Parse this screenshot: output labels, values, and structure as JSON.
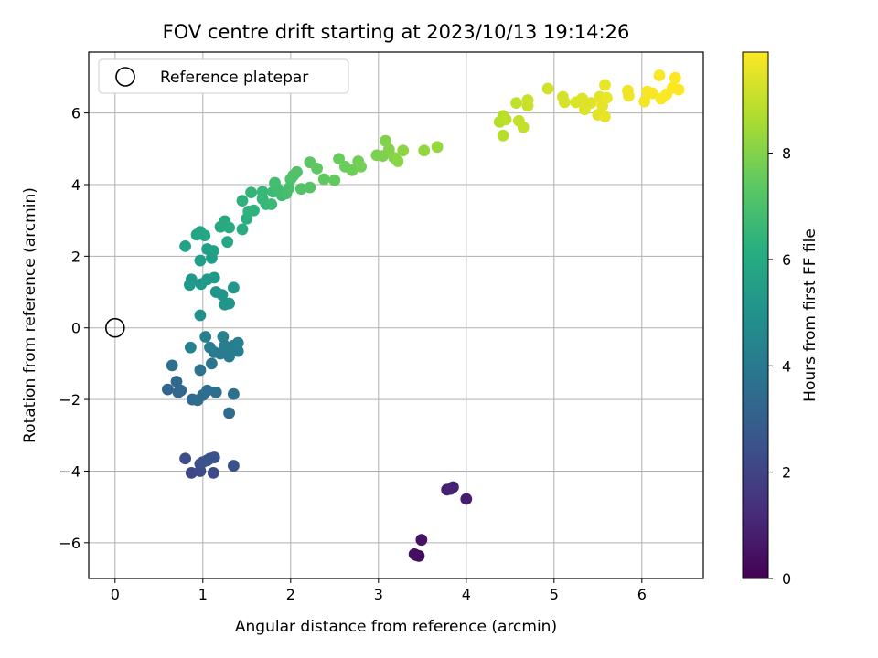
{
  "chart_data": {
    "type": "scatter",
    "title": "FOV centre drift starting at 2023/10/13 19:14:26",
    "xlabel": "Angular distance from reference (arcmin)",
    "ylabel": "Rotation from reference (arcmin)",
    "xlim": [
      -0.3,
      6.7
    ],
    "ylim": [
      -7.0,
      7.7
    ],
    "xticks": [
      0,
      1,
      2,
      3,
      4,
      5,
      6
    ],
    "yticks": [
      -6,
      -4,
      -2,
      0,
      2,
      4,
      6
    ],
    "grid": true,
    "legend": {
      "placement": "top-left",
      "entries": [
        "Reference platepar"
      ]
    },
    "reference_point": {
      "x": 0,
      "y": 0
    },
    "colorbar": {
      "label": "Hours from first FF file",
      "colormap": "viridis",
      "range": [
        0,
        9.9
      ],
      "ticks": [
        0,
        2,
        4,
        6,
        8
      ]
    },
    "series": [
      {
        "points": [
          [
            3.43,
            -6.35,
            0.3
          ],
          [
            3.46,
            -6.37,
            0.35
          ],
          [
            3.41,
            -6.32,
            0.4
          ],
          [
            3.49,
            -5.92,
            0.5
          ],
          [
            3.78,
            -4.52,
            0.9
          ],
          [
            3.85,
            -4.45,
            1.0
          ],
          [
            4.0,
            -4.78,
            0.8
          ],
          [
            3.82,
            -4.5,
            0.95
          ],
          [
            0.87,
            -4.05,
            2.1
          ],
          [
            0.97,
            -4.0,
            2.2
          ],
          [
            1.12,
            -4.05,
            2.25
          ],
          [
            0.8,
            -3.65,
            2.3
          ],
          [
            0.97,
            -3.8,
            2.35
          ],
          [
            1.05,
            -3.7,
            2.4
          ],
          [
            1.08,
            -3.65,
            2.45
          ],
          [
            1.13,
            -3.62,
            2.5
          ],
          [
            1.35,
            -3.85,
            2.5
          ],
          [
            1.0,
            -3.75,
            2.55
          ],
          [
            0.6,
            -1.72,
            3.2
          ],
          [
            0.72,
            -1.8,
            3.25
          ],
          [
            0.7,
            -1.5,
            3.3
          ],
          [
            0.75,
            -1.75,
            3.35
          ],
          [
            0.88,
            -2.0,
            3.4
          ],
          [
            0.94,
            -2.02,
            3.45
          ],
          [
            1.0,
            -1.88,
            3.5
          ],
          [
            1.05,
            -1.75,
            3.55
          ],
          [
            1.15,
            -1.8,
            3.6
          ],
          [
            1.35,
            -1.85,
            3.6
          ],
          [
            1.3,
            -2.38,
            3.4
          ],
          [
            0.65,
            -1.05,
            3.7
          ],
          [
            0.97,
            -1.18,
            3.8
          ],
          [
            1.1,
            -1.0,
            3.9
          ],
          [
            1.13,
            -0.68,
            4.0
          ],
          [
            1.2,
            -0.72,
            4.05
          ],
          [
            1.25,
            -0.6,
            4.1
          ],
          [
            1.3,
            -0.8,
            4.1
          ],
          [
            1.35,
            -0.5,
            4.15
          ],
          [
            1.4,
            -0.65,
            4.2
          ],
          [
            1.08,
            -0.55,
            4.2
          ],
          [
            1.03,
            -0.25,
            4.3
          ],
          [
            1.23,
            -0.25,
            4.35
          ],
          [
            1.4,
            -0.42,
            4.3
          ],
          [
            1.25,
            -0.5,
            4.25
          ],
          [
            0.86,
            -0.55,
            4.4
          ],
          [
            0.97,
            0.35,
            5.0
          ],
          [
            1.15,
            1.0,
            5.1
          ],
          [
            1.22,
            0.92,
            5.15
          ],
          [
            1.25,
            0.65,
            5.2
          ],
          [
            1.3,
            0.68,
            5.2
          ],
          [
            1.35,
            1.12,
            5.25
          ],
          [
            1.13,
            1.4,
            5.3
          ],
          [
            0.87,
            1.35,
            5.3
          ],
          [
            0.85,
            1.2,
            5.35
          ],
          [
            0.98,
            1.22,
            5.35
          ],
          [
            1.05,
            1.35,
            5.4
          ],
          [
            0.97,
            1.88,
            5.5
          ],
          [
            1.1,
            1.95,
            5.55
          ],
          [
            1.05,
            2.2,
            5.6
          ],
          [
            1.12,
            2.15,
            5.65
          ],
          [
            0.8,
            2.28,
            5.7
          ],
          [
            0.93,
            2.6,
            5.75
          ],
          [
            0.97,
            2.68,
            5.8
          ],
          [
            1.02,
            2.58,
            5.85
          ],
          [
            1.28,
            2.4,
            5.9
          ],
          [
            1.2,
            2.82,
            5.95
          ],
          [
            1.25,
            2.98,
            6.0
          ],
          [
            1.3,
            2.8,
            6.05
          ],
          [
            1.45,
            2.75,
            6.1
          ],
          [
            1.5,
            3.05,
            6.2
          ],
          [
            1.45,
            3.55,
            6.3
          ],
          [
            1.52,
            3.25,
            6.35
          ],
          [
            1.58,
            3.28,
            6.4
          ],
          [
            1.55,
            3.78,
            6.5
          ],
          [
            1.68,
            3.6,
            6.6
          ],
          [
            1.72,
            3.45,
            6.6
          ],
          [
            1.68,
            3.8,
            6.65
          ],
          [
            1.78,
            3.45,
            6.7
          ],
          [
            1.8,
            3.8,
            6.75
          ],
          [
            1.9,
            3.7,
            6.8
          ],
          [
            1.85,
            3.88,
            6.85
          ],
          [
            1.82,
            4.05,
            6.9
          ],
          [
            1.95,
            3.75,
            6.95
          ],
          [
            1.98,
            3.9,
            7.0
          ],
          [
            2.03,
            4.25,
            7.05
          ],
          [
            2.0,
            4.15,
            7.1
          ],
          [
            2.07,
            4.35,
            7.15
          ],
          [
            2.12,
            3.88,
            7.2
          ],
          [
            2.22,
            3.92,
            7.25
          ],
          [
            2.22,
            4.62,
            7.35
          ],
          [
            2.3,
            4.45,
            7.4
          ],
          [
            2.38,
            4.15,
            7.45
          ],
          [
            2.5,
            4.12,
            7.5
          ],
          [
            2.55,
            4.72,
            7.6
          ],
          [
            2.62,
            4.5,
            7.65
          ],
          [
            2.7,
            4.4,
            7.7
          ],
          [
            2.77,
            4.65,
            7.75
          ],
          [
            2.8,
            4.5,
            7.8
          ],
          [
            2.98,
            4.82,
            7.9
          ],
          [
            3.05,
            4.8,
            7.95
          ],
          [
            3.08,
            5.22,
            8.0
          ],
          [
            3.12,
            4.98,
            8.05
          ],
          [
            3.18,
            4.75,
            8.1
          ],
          [
            3.22,
            4.65,
            8.15
          ],
          [
            3.28,
            4.95,
            8.2
          ],
          [
            3.52,
            4.95,
            8.3
          ],
          [
            3.67,
            5.05,
            8.35
          ],
          [
            4.38,
            5.75,
            8.8
          ],
          [
            4.42,
            5.92,
            8.85
          ],
          [
            4.45,
            5.82,
            8.9
          ],
          [
            4.42,
            5.37,
            8.85
          ],
          [
            4.57,
            6.28,
            9.0
          ],
          [
            4.6,
            5.78,
            9.05
          ],
          [
            4.65,
            5.6,
            9.05
          ],
          [
            4.7,
            6.2,
            9.1
          ],
          [
            4.7,
            6.36,
            9.1
          ],
          [
            4.93,
            6.68,
            9.2
          ],
          [
            5.1,
            6.45,
            9.3
          ],
          [
            5.12,
            6.3,
            9.3
          ],
          [
            5.25,
            6.3,
            9.35
          ],
          [
            5.32,
            6.4,
            9.4
          ],
          [
            5.35,
            6.1,
            9.4
          ],
          [
            5.42,
            6.28,
            9.45
          ],
          [
            5.5,
            5.95,
            9.5
          ],
          [
            5.52,
            6.45,
            9.5
          ],
          [
            5.55,
            6.2,
            9.55
          ],
          [
            5.58,
            5.9,
            9.55
          ],
          [
            5.6,
            6.42,
            9.6
          ],
          [
            5.58,
            6.78,
            9.6
          ],
          [
            5.84,
            6.62,
            9.7
          ],
          [
            5.85,
            6.48,
            9.7
          ],
          [
            6.03,
            6.32,
            9.75
          ],
          [
            6.06,
            6.6,
            9.8
          ],
          [
            6.12,
            6.55,
            9.8
          ],
          [
            6.2,
            7.05,
            9.85
          ],
          [
            6.22,
            6.4,
            9.85
          ],
          [
            6.28,
            6.52,
            9.85
          ],
          [
            6.35,
            6.7,
            9.9
          ],
          [
            6.38,
            6.98,
            9.9
          ],
          [
            6.42,
            6.65,
            9.9
          ]
        ]
      }
    ]
  }
}
